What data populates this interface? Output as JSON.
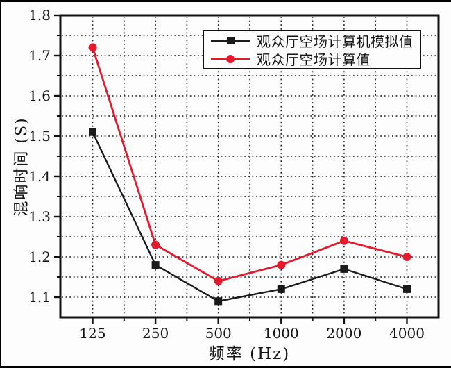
{
  "figure": {
    "background_color": "#fdfdfd",
    "frame_color": "#111111",
    "grid_color": "#1b1b1b"
  },
  "chart_data": {
    "type": "line",
    "title": "",
    "xlabel": "频率 (Hz)",
    "ylabel": "混响时间 (S)",
    "categories": [
      125,
      250,
      500,
      1000,
      2000,
      4000
    ],
    "x_tick_labels": [
      "125",
      "250",
      "500",
      "1000",
      "2000",
      "4000"
    ],
    "y_tick_labels": [
      "1.8",
      "1.7",
      "1.6",
      "1.5",
      "1.4",
      "1.3",
      "1.2",
      "1.1"
    ],
    "y_major_ticks": [
      1.8,
      1.7,
      1.6,
      1.5,
      1.4,
      1.3,
      1.2,
      1.1
    ],
    "y_minor_step": 0.05,
    "ylim": [
      1.05,
      1.8
    ],
    "grid": "dotted; y every 0.05, x at octave majors and halfway minors",
    "legend_position": "top-right-inside",
    "series": [
      {
        "name": "观众厅空场计算机模拟值",
        "marker": "square",
        "color": "#1a1a1a",
        "values": [
          1.51,
          1.18,
          1.09,
          1.12,
          1.17,
          1.12
        ]
      },
      {
        "name": "观众厅空场计算值",
        "marker": "circle",
        "color": "#e4192b",
        "values": [
          1.72,
          1.23,
          1.14,
          1.18,
          1.24,
          1.2
        ]
      }
    ]
  }
}
